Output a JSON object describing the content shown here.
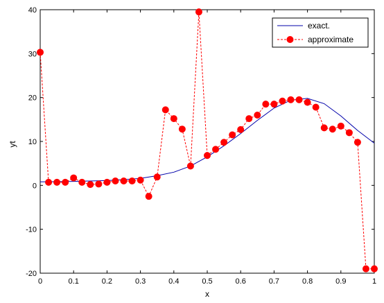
{
  "chart_data": {
    "type": "line",
    "xlabel": "x",
    "ylabel": "yt",
    "xlim": [
      0,
      1
    ],
    "ylim": [
      -20,
      40
    ],
    "x_ticks": [
      "0",
      "0.1",
      "0.2",
      "0.3",
      "0.4",
      "0.5",
      "0.6",
      "0.7",
      "0.8",
      "0.9",
      "1"
    ],
    "y_ticks": [
      "-20",
      "-10",
      "0",
      "10",
      "20",
      "30",
      "40"
    ],
    "grid": false,
    "legend": {
      "placement": "top-right"
    },
    "series": [
      {
        "name": "exact.",
        "style": "solid",
        "color": "#0000aa",
        "x": [
          0,
          0.05,
          0.1,
          0.15,
          0.2,
          0.25,
          0.3,
          0.35,
          0.4,
          0.45,
          0.5,
          0.55,
          0.6,
          0.65,
          0.7,
          0.75,
          0.8,
          0.85,
          0.9,
          0.95,
          1.0
        ],
        "y": [
          0.8,
          0.85,
          0.9,
          1.0,
          1.1,
          1.3,
          1.6,
          2.2,
          3.0,
          4.4,
          6.5,
          9.0,
          11.8,
          14.8,
          17.6,
          19.4,
          19.8,
          18.6,
          15.8,
          12.5,
          9.6
        ]
      },
      {
        "name": "approximate",
        "style": "dashed",
        "marker": "circle",
        "color": "#ff0000",
        "x": [
          0.0,
          0.025,
          0.05,
          0.075,
          0.1,
          0.125,
          0.15,
          0.175,
          0.2,
          0.225,
          0.25,
          0.275,
          0.3,
          0.325,
          0.35,
          0.375,
          0.4,
          0.425,
          0.45,
          0.475,
          0.5,
          0.525,
          0.55,
          0.575,
          0.6,
          0.625,
          0.65,
          0.675,
          0.7,
          0.725,
          0.75,
          0.775,
          0.8,
          0.825,
          0.85,
          0.875,
          0.9,
          0.925,
          0.95,
          0.975,
          1.0
        ],
        "y": [
          30.3,
          0.7,
          0.7,
          0.7,
          1.7,
          0.7,
          0.2,
          0.3,
          0.7,
          1.0,
          1.0,
          1.0,
          1.2,
          -2.5,
          1.9,
          17.2,
          15.2,
          12.8,
          4.4,
          39.5,
          6.8,
          8.2,
          9.8,
          11.5,
          12.7,
          15.2,
          16.0,
          18.5,
          18.5,
          19.2,
          19.5,
          19.5,
          18.9,
          17.8,
          13.1,
          12.8,
          13.5,
          12.0,
          9.8,
          -19.0,
          -19.0
        ]
      }
    ]
  }
}
